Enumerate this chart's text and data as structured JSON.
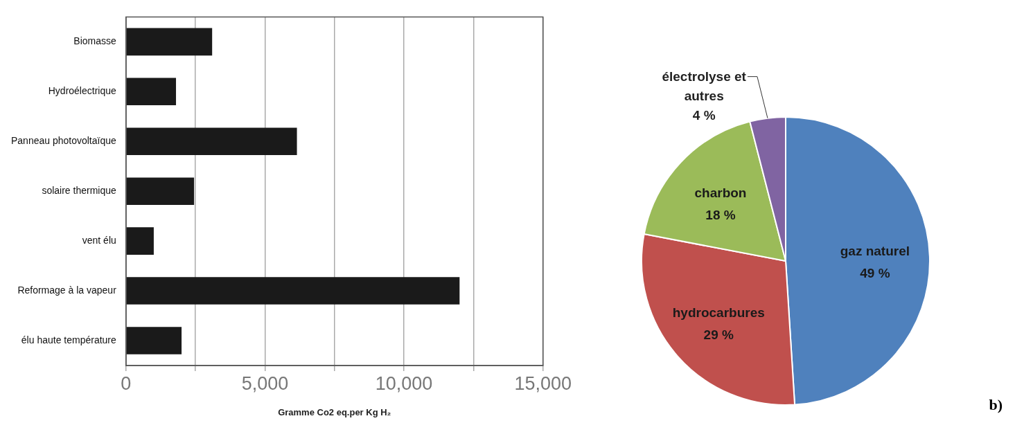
{
  "chart_data": [
    {
      "type": "bar",
      "orientation": "horizontal",
      "categories": [
        "Biomasse",
        "Hydroélectrique",
        "Panneau photovoltaïque",
        "solaire thermique",
        "vent élu",
        "Reformage à la vapeur",
        "élu haute température"
      ],
      "values": [
        3100,
        1800,
        6150,
        2450,
        1000,
        12000,
        2000
      ],
      "color": "#1a1a1a",
      "xlabel": "Gramme Co2 eq.per Kg H₂",
      "xlim": [
        0,
        15000
      ],
      "xticks": [
        0,
        {
          "value": 2500,
          "label": null
        },
        {
          "value": 5000,
          "label": "5,000"
        },
        {
          "value": 7500,
          "label": null
        },
        {
          "value": 10000,
          "label": "10,000"
        },
        {
          "value": 12500,
          "label": null
        },
        {
          "value": 15000,
          "label": "15,000"
        }
      ],
      "grid": "x",
      "legend": false
    },
    {
      "type": "pie",
      "categories": [
        "gaz naturel",
        "hydrocarbures",
        "charbon",
        "électrolyse et autres"
      ],
      "values": [
        49,
        29,
        18,
        4
      ],
      "colors": [
        "#4f81bd",
        "#c0504d",
        "#9bbb59",
        "#8064a2"
      ],
      "value_labels": [
        "49 %",
        "29 %",
        "18 %",
        "4 %"
      ],
      "legend": false,
      "annotations": [
        "b)"
      ]
    }
  ]
}
